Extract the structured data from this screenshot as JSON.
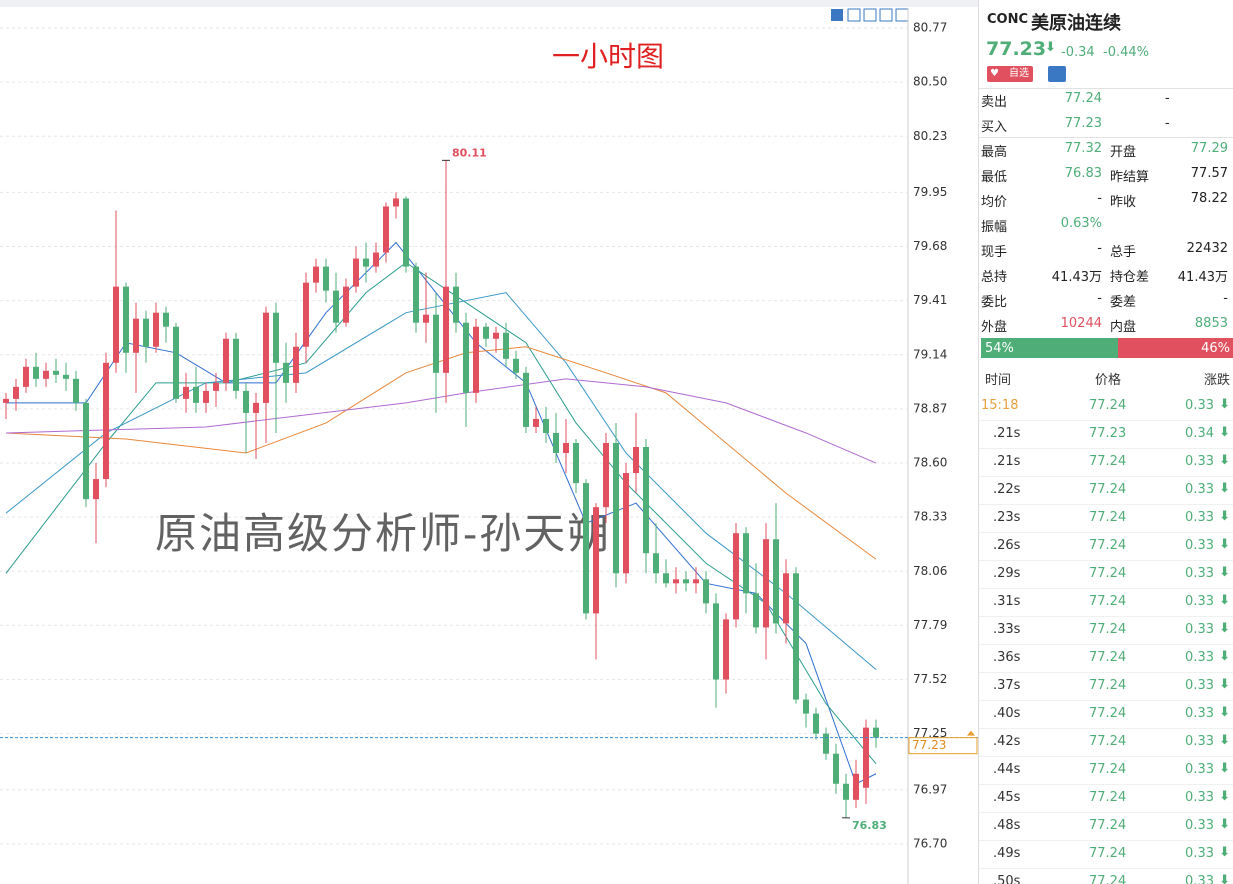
{
  "chart_data": {
    "type": "candlestick",
    "title": "一小时图",
    "watermark": "原油高级分析师-孙天朔",
    "ylim": [
      76.5,
      80.87
    ],
    "yticks": [
      80.77,
      {
        "value": 80.5,
        "label": "80.50"
      },
      80.23,
      79.95,
      79.68,
      79.41,
      79.14,
      78.87,
      {
        "value": 78.6,
        "label": "78.60"
      },
      78.33,
      78.06,
      77.79,
      77.52,
      77.25,
      76.97,
      {
        "value": 76.7,
        "label": "76.70"
      }
    ],
    "grid": true,
    "up_color": "#e0505f",
    "down_color": "#4fae78",
    "ohlc": [
      [
        78.9,
        78.95,
        78.82,
        78.92
      ],
      [
        78.92,
        79.02,
        78.86,
        78.98
      ],
      [
        78.98,
        79.12,
        78.95,
        79.08
      ],
      [
        79.08,
        79.15,
        78.98,
        79.02
      ],
      [
        79.02,
        79.1,
        78.98,
        79.06
      ],
      [
        79.06,
        79.12,
        79.0,
        79.04
      ],
      [
        79.04,
        79.1,
        78.96,
        79.02
      ],
      [
        79.02,
        79.06,
        78.86,
        78.9
      ],
      [
        78.9,
        78.92,
        78.38,
        78.42
      ],
      [
        78.42,
        78.6,
        78.2,
        78.52
      ],
      [
        78.52,
        79.15,
        78.48,
        79.1
      ],
      [
        79.1,
        79.86,
        79.05,
        79.48
      ],
      [
        79.48,
        79.5,
        79.05,
        79.15
      ],
      [
        79.15,
        79.4,
        78.95,
        79.32
      ],
      [
        79.32,
        79.36,
        79.1,
        79.18
      ],
      [
        79.18,
        79.4,
        79.15,
        79.35
      ],
      [
        79.35,
        79.38,
        79.2,
        79.28
      ],
      [
        79.28,
        79.3,
        78.9,
        78.92
      ],
      [
        78.92,
        79.05,
        78.85,
        78.98
      ],
      [
        78.98,
        79.08,
        78.85,
        78.9
      ],
      [
        78.9,
        79.0,
        78.85,
        78.96
      ],
      [
        78.96,
        79.05,
        78.88,
        79.0
      ],
      [
        79.0,
        79.25,
        78.96,
        79.22
      ],
      [
        79.22,
        79.25,
        78.92,
        78.96
      ],
      [
        78.96,
        79.0,
        78.65,
        78.85
      ],
      [
        78.85,
        78.95,
        78.62,
        78.9
      ],
      [
        78.9,
        79.38,
        78.7,
        79.35
      ],
      [
        79.35,
        79.4,
        78.75,
        79.1
      ],
      [
        79.1,
        79.2,
        78.9,
        79.0
      ],
      [
        79.0,
        79.25,
        78.95,
        79.18
      ],
      [
        79.18,
        79.55,
        79.1,
        79.5
      ],
      [
        79.5,
        79.62,
        79.45,
        79.58
      ],
      [
        79.58,
        79.62,
        79.4,
        79.46
      ],
      [
        79.46,
        79.55,
        79.25,
        79.3
      ],
      [
        79.3,
        79.52,
        79.28,
        79.48
      ],
      [
        79.48,
        79.68,
        79.45,
        79.62
      ],
      [
        79.62,
        79.7,
        79.5,
        79.58
      ],
      [
        79.58,
        79.7,
        79.55,
        79.65
      ],
      [
        79.65,
        79.9,
        79.6,
        79.88
      ],
      [
        79.88,
        79.95,
        79.82,
        79.92
      ],
      [
        79.92,
        79.93,
        79.55,
        79.58
      ],
      [
        79.58,
        79.6,
        79.25,
        79.3
      ],
      [
        79.3,
        79.55,
        79.2,
        79.34
      ],
      [
        79.34,
        79.45,
        78.85,
        79.05
      ],
      [
        79.05,
        80.11,
        78.9,
        79.48
      ],
      [
        79.48,
        79.55,
        79.25,
        79.3
      ],
      [
        79.3,
        79.35,
        78.78,
        78.95
      ],
      [
        78.95,
        79.32,
        78.9,
        79.28
      ],
      [
        79.28,
        79.3,
        79.18,
        79.22
      ],
      [
        79.22,
        79.28,
        79.15,
        79.25
      ],
      [
        79.25,
        79.3,
        79.08,
        79.12
      ],
      [
        79.12,
        79.16,
        79.02,
        79.05
      ],
      [
        79.05,
        79.08,
        78.75,
        78.78
      ],
      [
        78.78,
        78.88,
        78.75,
        78.82
      ],
      [
        78.82,
        78.88,
        78.7,
        78.75
      ],
      [
        78.75,
        78.85,
        78.6,
        78.65
      ],
      [
        78.65,
        78.82,
        78.55,
        78.7
      ],
      [
        78.7,
        78.72,
        78.45,
        78.5
      ],
      [
        78.5,
        78.52,
        77.82,
        77.85
      ],
      [
        77.85,
        78.4,
        77.62,
        78.38
      ],
      [
        78.38,
        78.75,
        78.3,
        78.7
      ],
      [
        78.7,
        78.8,
        77.98,
        78.05
      ],
      [
        78.05,
        78.6,
        78.0,
        78.55
      ],
      [
        78.55,
        78.85,
        78.45,
        78.68
      ],
      [
        78.68,
        78.72,
        78.05,
        78.15
      ],
      [
        78.15,
        78.3,
        78.0,
        78.05
      ],
      [
        78.05,
        78.12,
        77.98,
        78.0
      ],
      [
        78.0,
        78.08,
        77.95,
        78.02
      ],
      [
        78.02,
        78.06,
        77.96,
        78.0
      ],
      [
        78.0,
        78.08,
        77.95,
        78.02
      ],
      [
        78.02,
        78.06,
        77.85,
        77.9
      ],
      [
        77.9,
        77.95,
        77.38,
        77.52
      ],
      [
        77.52,
        77.85,
        77.45,
        77.82
      ],
      [
        77.82,
        78.3,
        77.78,
        78.25
      ],
      [
        78.25,
        78.28,
        77.85,
        77.95
      ],
      [
        77.95,
        78.1,
        77.75,
        77.78
      ],
      [
        77.78,
        78.3,
        77.62,
        78.22
      ],
      [
        78.22,
        78.4,
        77.75,
        77.8
      ],
      [
        77.8,
        78.12,
        77.7,
        78.05
      ],
      [
        78.05,
        78.08,
        77.4,
        77.42
      ],
      [
        77.42,
        77.45,
        77.28,
        77.35
      ],
      [
        77.35,
        77.38,
        77.22,
        77.25
      ],
      [
        77.25,
        77.28,
        77.12,
        77.15
      ],
      [
        77.15,
        77.2,
        76.95,
        77.0
      ],
      [
        77.0,
        77.05,
        76.83,
        76.92
      ],
      [
        76.92,
        77.12,
        76.88,
        77.05
      ],
      [
        76.98,
        77.32,
        76.9,
        77.28
      ],
      [
        77.28,
        77.32,
        77.18,
        77.23
      ]
    ],
    "lines": [
      {
        "color": "#2f6fd0",
        "x": [
          0,
          8,
          12,
          17,
          22,
          27,
          32,
          39,
          43,
          47,
          52,
          58,
          63,
          70,
          75,
          80,
          85,
          87
        ],
        "values": [
          78.9,
          78.9,
          79.2,
          79.15,
          79.0,
          79.0,
          79.35,
          79.7,
          79.45,
          79.2,
          79.0,
          78.3,
          78.4,
          78.0,
          77.95,
          77.7,
          77.0,
          77.05
        ]
      },
      {
        "color": "#2a9d8f",
        "x": [
          0,
          10,
          15,
          22,
          30,
          36,
          40,
          46,
          52,
          57,
          62,
          70,
          76,
          82,
          87
        ],
        "values": [
          78.05,
          78.7,
          79.0,
          79.0,
          79.1,
          79.45,
          79.6,
          79.4,
          79.2,
          78.8,
          78.5,
          78.1,
          77.9,
          77.4,
          77.1
        ]
      },
      {
        "color": "#3a98c8",
        "x": [
          0,
          10,
          20,
          30,
          40,
          50,
          56,
          62,
          70,
          78,
          87
        ],
        "values": [
          78.35,
          78.75,
          79.0,
          79.05,
          79.35,
          79.45,
          79.1,
          78.65,
          78.25,
          77.95,
          77.57
        ]
      },
      {
        "color": "#e8883a",
        "x": [
          0,
          12,
          24,
          32,
          40,
          46,
          52,
          60,
          66,
          72,
          78,
          87
        ],
        "values": [
          78.75,
          78.72,
          78.65,
          78.8,
          79.05,
          79.15,
          79.18,
          79.05,
          78.95,
          78.7,
          78.45,
          78.12
        ]
      },
      {
        "color": "#b06ad0",
        "x": [
          0,
          20,
          40,
          46,
          56,
          64,
          72,
          80,
          87
        ],
        "values": [
          78.75,
          78.78,
          78.9,
          78.95,
          79.02,
          78.98,
          78.9,
          78.75,
          78.6
        ]
      }
    ],
    "annotations": [
      {
        "x": 44,
        "value": 80.11,
        "color": "#e0505f"
      },
      {
        "x": 84,
        "value": 76.83,
        "color": "#4fae78"
      }
    ],
    "last_price": 77.23
  },
  "quote": {
    "code": "CONC",
    "name": "美原油连续",
    "price": "77.23",
    "change": "-0.34",
    "pct": "-0.44%",
    "button": "自选",
    "book": [
      [
        "卖出",
        "77.24",
        "-"
      ],
      [
        "买入",
        "77.23",
        "-"
      ]
    ],
    "stats": [
      [
        {
          "label": "最高",
          "value": "77.32",
          "color": "#4fae78"
        },
        {
          "label": "开盘",
          "value": "77.29",
          "color": "#4fae78"
        }
      ],
      [
        {
          "label": "最低",
          "value": "76.83",
          "color": "#4fae78"
        },
        {
          "label": "昨结算",
          "value": "77.57",
          "color": "#222"
        }
      ],
      [
        {
          "label": "均价",
          "value": "-",
          "color": "#222"
        },
        {
          "label": "昨收",
          "value": "78.22",
          "color": "#222"
        }
      ],
      [
        {
          "label": "振幅",
          "value": "0.63%",
          "color": "#4fae78"
        }
      ],
      [
        {
          "label": "现手",
          "value": "-",
          "color": "#222"
        },
        {
          "label": "总手",
          "value": "22432",
          "color": "#222"
        }
      ],
      [
        {
          "label": "总持",
          "value": "41.43万",
          "color": "#222"
        },
        {
          "label": "持仓差",
          "value": "41.43万",
          "color": "#222"
        }
      ],
      [
        {
          "label": "委比",
          "value": "-",
          "color": "#222"
        },
        {
          "label": "委差",
          "value": "-",
          "color": "#222"
        }
      ],
      [
        {
          "label": "外盘",
          "value": "10244",
          "color": "#e0505f"
        },
        {
          "label": "内盘",
          "value": "8853",
          "color": "#4fae78"
        }
      ]
    ],
    "ratio": [
      {
        "value": 54,
        "label": "54%",
        "color": "#4fae78"
      },
      {
        "value": 46,
        "label": "46%",
        "color": "#e0505f"
      }
    ]
  },
  "trades": {
    "headers": [
      "时间",
      "价格",
      "涨跌"
    ],
    "rows": [
      [
        "15:18",
        "77.24",
        "0.33"
      ],
      [
        ".21s",
        "77.23",
        "0.34"
      ],
      [
        ".21s",
        "77.24",
        "0.33"
      ],
      [
        ".22s",
        "77.24",
        "0.33"
      ],
      [
        ".23s",
        "77.24",
        "0.33"
      ],
      [
        ".26s",
        "77.24",
        "0.33"
      ],
      [
        ".29s",
        "77.24",
        "0.33"
      ],
      [
        ".31s",
        "77.24",
        "0.33"
      ],
      [
        ".33s",
        "77.24",
        "0.33"
      ],
      [
        ".36s",
        "77.24",
        "0.33"
      ],
      [
        ".37s",
        "77.24",
        "0.33"
      ],
      [
        ".40s",
        "77.24",
        "0.33"
      ],
      [
        ".42s",
        "77.24",
        "0.33"
      ],
      [
        ".44s",
        "77.24",
        "0.33"
      ],
      [
        ".45s",
        "77.24",
        "0.33"
      ],
      [
        ".48s",
        "77.24",
        "0.33"
      ],
      [
        ".49s",
        "77.24",
        "0.33"
      ],
      [
        ".50s",
        "77.24",
        "0.33"
      ]
    ]
  }
}
